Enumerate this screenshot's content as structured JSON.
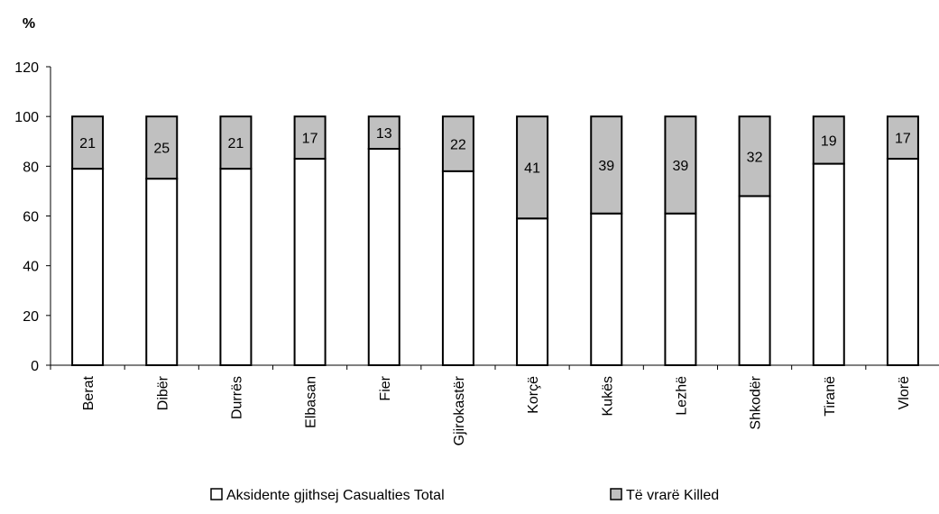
{
  "chart_data": {
    "type": "bar",
    "stacked": true,
    "percent_stacked": true,
    "unit_label": "%",
    "ylim": [
      0,
      120
    ],
    "y_ticks": [
      0,
      20,
      40,
      60,
      80,
      100,
      120
    ],
    "categories": [
      "Berat",
      "Dibër",
      "Durrës",
      "Elbasan",
      "Fier",
      "Gjirokastër",
      "Korçë",
      "Kukës",
      "Lezhë",
      "Shkodër",
      "Tiranë",
      "Vlorë"
    ],
    "series": [
      {
        "name": "Aksidente gjithsej Casualties Total",
        "values": [
          79,
          75,
          79,
          83,
          87,
          78,
          59,
          61,
          61,
          68,
          81,
          83
        ],
        "color": "#ffffff",
        "show_labels": false
      },
      {
        "name": "Të vrarë Killed",
        "values": [
          21,
          25,
          21,
          17,
          13,
          22,
          41,
          39,
          39,
          32,
          19,
          17
        ],
        "color": "#c0c0c0",
        "show_labels": true
      }
    ],
    "legend_position": "bottom",
    "grid": false
  }
}
